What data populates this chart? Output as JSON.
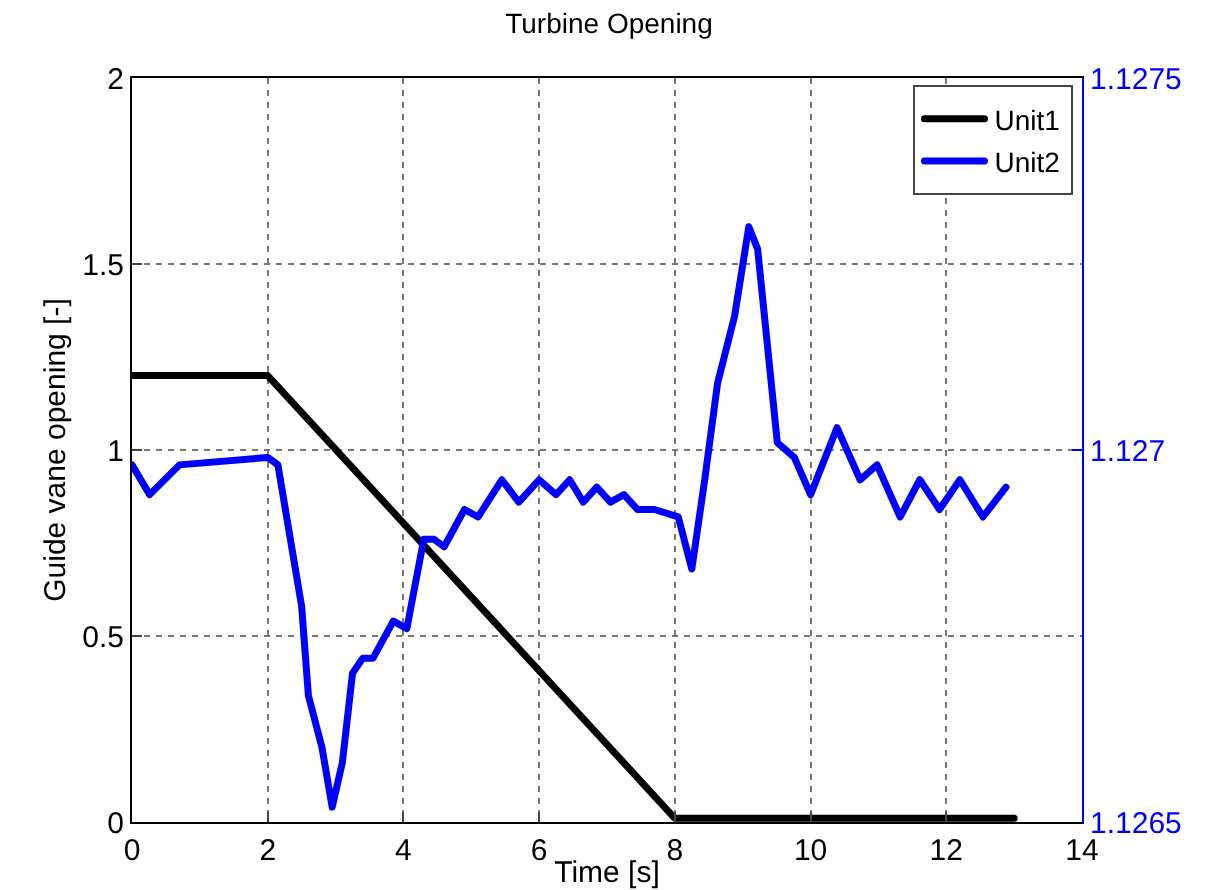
{
  "chart_data": {
    "type": "line",
    "title": "Turbine Opening",
    "xlabel": "Time [s]",
    "ylabel": "Guide vane opening [-]",
    "xlim": [
      0,
      14
    ],
    "xticks": [
      0,
      2,
      4,
      6,
      8,
      10,
      12,
      14
    ],
    "ylim": [
      0,
      2
    ],
    "yticks": [
      0,
      0.5,
      1,
      1.5,
      2
    ],
    "y2lim": [
      1.1265,
      1.1275
    ],
    "y2ticks": [
      1.1265,
      1.127,
      1.1275
    ],
    "grid": true,
    "legend": "top right",
    "marker": "none",
    "series": [
      {
        "name": "Unit1",
        "color": "#000000",
        "x": [
          0,
          2,
          8,
          13
        ],
        "values": [
          1.2,
          1.2,
          0.01,
          0.01
        ]
      },
      {
        "name": "Unit2",
        "color": "#0000ff",
        "axis": "y2",
        "x": [
          0,
          0.26,
          0.7,
          2.0,
          2.15,
          2.5,
          2.6,
          2.8,
          2.95,
          3.1,
          3.25,
          3.4,
          3.55,
          3.85,
          4.05,
          4.3,
          4.45,
          4.6,
          4.9,
          5.1,
          5.45,
          5.7,
          6.0,
          6.25,
          6.45,
          6.65,
          6.85,
          7.05,
          7.25,
          7.45,
          7.7,
          8.05,
          8.25,
          8.44,
          8.63,
          8.88,
          9.09,
          9.22,
          9.51,
          9.76,
          10.0,
          10.39,
          10.73,
          10.98,
          11.32,
          11.61,
          11.9,
          12.2,
          12.54,
          12.88
        ],
        "values": [
          1.12698,
          1.12694,
          1.12698,
          1.12699,
          1.12698,
          1.12679,
          1.12667,
          1.1266,
          1.12652,
          1.12658,
          1.1267,
          1.12672,
          1.12672,
          1.12677,
          1.12676,
          1.12688,
          1.12688,
          1.12687,
          1.12692,
          1.12691,
          1.12696,
          1.12693,
          1.12696,
          1.12694,
          1.12696,
          1.12693,
          1.12695,
          1.12693,
          1.12694,
          1.12692,
          1.12692,
          1.12691,
          1.12684,
          1.12696,
          1.12709,
          1.12718,
          1.1273,
          1.12727,
          1.12701,
          1.12699,
          1.12694,
          1.12703,
          1.12696,
          1.12698,
          1.12691,
          1.12696,
          1.12692,
          1.12696,
          1.12691,
          1.12695
        ]
      }
    ]
  }
}
